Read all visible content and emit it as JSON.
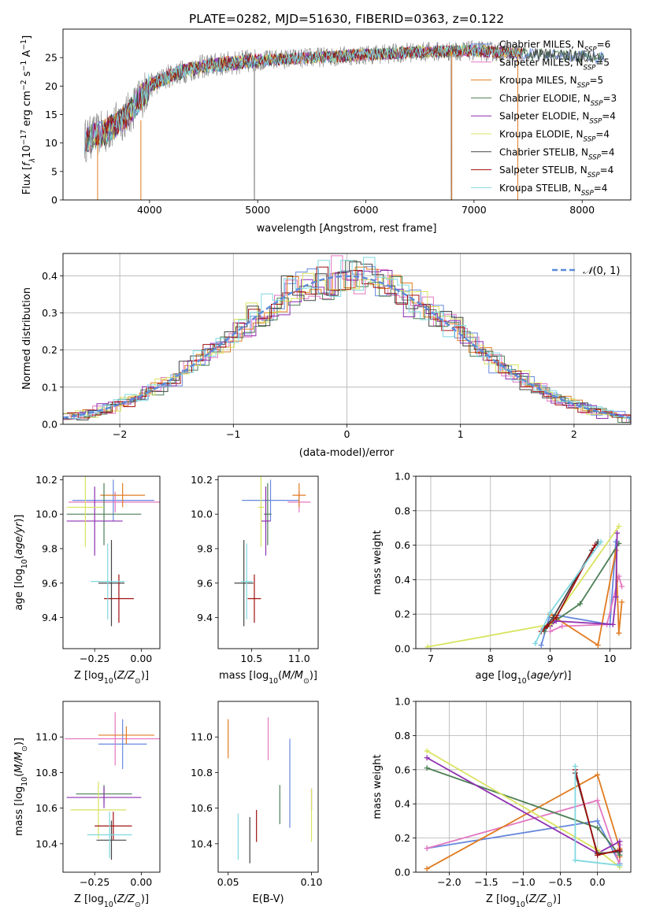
{
  "figure_title": "PLATE=0282, MJD=51630, FIBERID=0363, z=0.122",
  "chart_data": [
    {
      "id": "spectrum",
      "type": "line",
      "xlabel": "wavelength [Angstrom, rest frame]",
      "ylabel": "Flux [fλ10⁻¹⁷ erg cm⁻² s⁻¹ A⁻¹]",
      "xlim": [
        3200,
        8450
      ],
      "ylim": [
        0,
        30
      ],
      "xticks": [
        4000,
        5000,
        6000,
        7000,
        8000
      ],
      "yticks": [
        0,
        5,
        10,
        15,
        20,
        25
      ],
      "continuum": {
        "x": [
          3400,
          3600,
          3800,
          4000,
          4200,
          4500,
          5000,
          5500,
          6000,
          6500,
          7000,
          7200,
          7400,
          7600,
          7800,
          8000,
          8200
        ],
        "y": [
          10.5,
          12,
          15,
          20,
          22,
          23.5,
          24.5,
          25,
          25.5,
          26,
          26.2,
          26,
          25.8,
          25.6,
          25.5,
          25.2,
          25
        ]
      },
      "series": [
        {
          "name": "Chabrier MILES, N_SSP=6",
          "color": "#6688dd"
        },
        {
          "name": "Salpeter MILES, N_SSP=5",
          "color": "#e377c2"
        },
        {
          "name": "Kroupa MILES, N_SSP=5",
          "color": "#e07b20"
        },
        {
          "name": "Chabrier ELODIE, N_SSP=3",
          "color": "#4c7f55"
        },
        {
          "name": "Salpeter ELODIE, N_SSP=4",
          "color": "#8e2fb0"
        },
        {
          "name": "Kroupa ELODIE, N_SSP=4",
          "color": "#d9e35f"
        },
        {
          "name": "Chabrier STELIB, N_SSP=4",
          "color": "#444444"
        },
        {
          "name": "Salpeter STELIB, N_SSP=4",
          "color": "#a01010"
        },
        {
          "name": "Kroupa STELIB, N_SSP=4",
          "color": "#7fd8e0"
        }
      ],
      "legend": [
        {
          "pre": "Chabrier MILES, N",
          "sub": "SSP",
          "post": "=6"
        },
        {
          "pre": "Salpeter MILES, N",
          "sub": "SSP",
          "post": "=5"
        },
        {
          "pre": "Kroupa MILES, N",
          "sub": "SSP",
          "post": "=5"
        },
        {
          "pre": "Chabrier ELODIE, N",
          "sub": "SSP",
          "post": "=3"
        },
        {
          "pre": "Salpeter ELODIE, N",
          "sub": "SSP",
          "post": "=4"
        },
        {
          "pre": "Kroupa ELODIE, N",
          "sub": "SSP",
          "post": "=4"
        },
        {
          "pre": "Chabrier STELIB, N",
          "sub": "SSP",
          "post": "=4"
        },
        {
          "pre": "Salpeter STELIB, N",
          "sub": "SSP",
          "post": "=4"
        },
        {
          "pre": "Kroupa STELIB, N",
          "sub": "SSP",
          "post": "=4"
        }
      ],
      "legend_placement": "right"
    },
    {
      "id": "residuals",
      "type": "step",
      "xlabel": "(data-model)/error",
      "ylabel": "Normed distribution",
      "xlim": [
        -2.5,
        2.5
      ],
      "ylim": [
        0,
        0.46
      ],
      "xticks": [
        -2,
        -1,
        0,
        1,
        2
      ],
      "yticks": [
        0.0,
        0.1,
        0.2,
        0.3,
        0.4
      ],
      "grid": true,
      "gaussian_label": "N(0, 1)",
      "legend_placement": "top-right"
    },
    {
      "id": "age_vs_Z",
      "type": "errorbar",
      "xlabel": "Z [log10(Z/Z⊙)]",
      "ylabel": "age [log10(age/yr)]",
      "xlim": [
        -0.42,
        0.1
      ],
      "ylim": [
        9.22,
        10.22
      ],
      "xticks": [
        -0.25,
        0.0
      ],
      "yticks": [
        9.4,
        9.6,
        9.8,
        10.0,
        10.2
      ],
      "points": [
        {
          "x": -0.15,
          "y": 10.08,
          "xe": 0.22,
          "ye": 0.12
        },
        {
          "x": -0.14,
          "y": 10.07,
          "xe": 0.25,
          "ye": 0.06
        },
        {
          "x": -0.1,
          "y": 10.11,
          "xe": 0.12,
          "ye": 0.07
        },
        {
          "x": -0.2,
          "y": 10.0,
          "xe": 0.2,
          "ye": 0.18
        },
        {
          "x": -0.25,
          "y": 9.96,
          "xe": 0.15,
          "ye": 0.2
        },
        {
          "x": -0.3,
          "y": 10.04,
          "xe": 0.1,
          "ye": 0.23
        },
        {
          "x": -0.16,
          "y": 9.6,
          "xe": 0.07,
          "ye": 0.25
        },
        {
          "x": -0.12,
          "y": 9.51,
          "xe": 0.08,
          "ye": 0.14
        },
        {
          "x": -0.18,
          "y": 9.61,
          "xe": 0.09,
          "ye": 0.22
        }
      ]
    },
    {
      "id": "age_vs_mass",
      "type": "errorbar",
      "xlabel": "mass [log10(M/M⊙)]",
      "ylabel": "",
      "xlim": [
        10.15,
        11.2
      ],
      "ylim": [
        9.22,
        10.22
      ],
      "xticks": [
        10.5,
        11.0
      ],
      "yticks": [
        9.4,
        9.6,
        9.8,
        10.0,
        10.2
      ],
      "points": [
        {
          "x": 10.7,
          "y": 10.08,
          "xe": 0.3,
          "ye": 0.12
        },
        {
          "x": 11.0,
          "y": 10.07,
          "xe": 0.12,
          "ye": 0.06
        },
        {
          "x": 11.0,
          "y": 10.11,
          "xe": 0.07,
          "ye": 0.07
        },
        {
          "x": 10.67,
          "y": 10.0,
          "xe": 0.04,
          "ye": 0.18
        },
        {
          "x": 10.65,
          "y": 9.96,
          "xe": 0.05,
          "ye": 0.2
        },
        {
          "x": 10.6,
          "y": 10.04,
          "xe": 0.03,
          "ye": 0.23
        },
        {
          "x": 10.42,
          "y": 9.6,
          "xe": 0.1,
          "ye": 0.25
        },
        {
          "x": 10.53,
          "y": 9.51,
          "xe": 0.07,
          "ye": 0.14
        },
        {
          "x": 10.45,
          "y": 9.61,
          "xe": 0.06,
          "ye": 0.22
        }
      ]
    },
    {
      "id": "weight_vs_age",
      "type": "line",
      "xlabel": "age [log10(age/yr)]",
      "ylabel": "mass weight",
      "xlim": [
        6.75,
        10.35
      ],
      "ylim": [
        0,
        1
      ],
      "xticks": [
        7,
        8,
        9,
        10
      ],
      "yticks": [
        0.0,
        0.2,
        0.4,
        0.6,
        0.8,
        1.0
      ],
      "grid": true
    },
    {
      "id": "mass_vs_Z",
      "type": "errorbar",
      "xlabel": "Z [log10(Z/Z⊙)]",
      "ylabel": "mass [log10(M/M⊙)]",
      "xlim": [
        -0.42,
        0.1
      ],
      "ylim": [
        10.24,
        11.2
      ],
      "xticks": [
        -0.25,
        0.0
      ],
      "yticks": [
        10.4,
        10.6,
        10.8,
        11.0
      ],
      "points": [
        {
          "x": -0.1,
          "y": 10.96,
          "xe": 0.13,
          "ye": 0.14
        },
        {
          "x": -0.14,
          "y": 10.99,
          "xe": 0.27,
          "ye": 0.15
        },
        {
          "x": -0.08,
          "y": 11.01,
          "xe": 0.15,
          "ye": 0.05
        },
        {
          "x": -0.2,
          "y": 10.68,
          "xe": 0.15,
          "ye": 0.05
        },
        {
          "x": -0.2,
          "y": 10.66,
          "xe": 0.2,
          "ye": 0.06
        },
        {
          "x": -0.23,
          "y": 10.59,
          "xe": 0.15,
          "ye": 0.16
        },
        {
          "x": -0.16,
          "y": 10.42,
          "xe": 0.08,
          "ye": 0.11
        },
        {
          "x": -0.15,
          "y": 10.5,
          "xe": 0.1,
          "ye": 0.08
        },
        {
          "x": -0.17,
          "y": 10.45,
          "xe": 0.12,
          "ye": 0.13
        }
      ]
    },
    {
      "id": "mass_vs_ebv",
      "type": "errorbar",
      "xlabel": "E(B-V)",
      "ylabel": "",
      "xlim": [
        0.044,
        0.104
      ],
      "ylim": [
        10.24,
        11.2
      ],
      "xticks": [
        0.05,
        0.1
      ],
      "yticks": [
        10.4,
        10.6,
        10.8,
        11.0
      ],
      "points": [
        {
          "x": 0.087,
          "y": 10.74,
          "ye": 0.25
        },
        {
          "x": 0.074,
          "y": 10.99,
          "ye": 0.12
        },
        {
          "x": 0.05,
          "y": 10.99,
          "ye": 0.11
        },
        {
          "x": 0.081,
          "y": 10.62,
          "ye": 0.11
        },
        {
          "x": 0.1,
          "y": 10.65,
          "ye": 0.06
        },
        {
          "x": 0.1,
          "y": 10.56,
          "ye": 0.15
        },
        {
          "x": 0.063,
          "y": 10.42,
          "ye": 0.13
        },
        {
          "x": 0.067,
          "y": 10.5,
          "ye": 0.09
        },
        {
          "x": 0.056,
          "y": 10.44,
          "ye": 0.13
        }
      ]
    },
    {
      "id": "weight_vs_Z",
      "type": "line",
      "xlabel": "Z [log10(Z/Z⊙)]",
      "ylabel": "mass weight",
      "xlim": [
        -2.45,
        0.45
      ],
      "ylim": [
        0,
        1
      ],
      "xticks": [
        -2.0,
        -1.5,
        -1.0,
        -0.5,
        0.0
      ],
      "yticks": [
        0.0,
        0.2,
        0.4,
        0.6,
        0.8,
        1.0
      ],
      "grid": true
    }
  ]
}
